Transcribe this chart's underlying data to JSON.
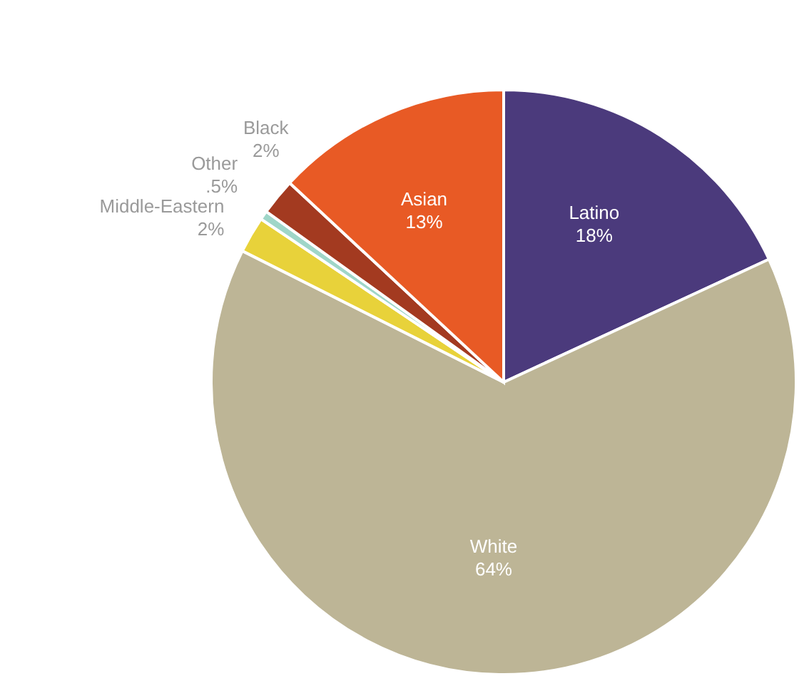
{
  "chart_data": {
    "type": "pie",
    "categories": [
      "Latino",
      "White",
      "Middle-Eastern",
      "Other",
      "Black",
      "Asian"
    ],
    "values": [
      18,
      64,
      2,
      0.5,
      2,
      13
    ],
    "value_labels": [
      "18%",
      "64%",
      "2%",
      ".5%",
      "2%",
      "13%"
    ],
    "colors": [
      "#4b3a7c",
      "#bdb596",
      "#e8d23a",
      "#9fd6c8",
      "#a33a20",
      "#e85a25"
    ],
    "legend": false
  }
}
